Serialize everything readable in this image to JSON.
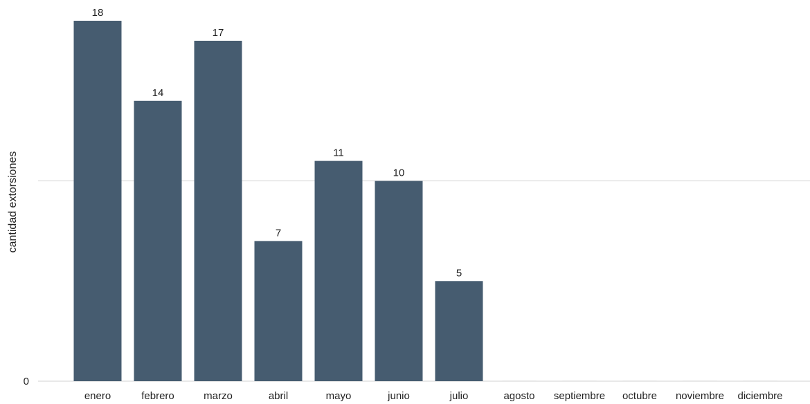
{
  "colors": {
    "bar": "#465c70",
    "gridline": "#d0d0d0",
    "baseline": "#d0d0d0",
    "text": "#222222"
  },
  "chart_data": {
    "type": "bar",
    "categories": [
      "enero",
      "febrero",
      "marzo",
      "abril",
      "mayo",
      "junio",
      "julio",
      "agosto",
      "septiembre",
      "octubre",
      "noviembre",
      "diciembre"
    ],
    "values": [
      18,
      14,
      17,
      7,
      11,
      10,
      5,
      0,
      0,
      0,
      0,
      0
    ],
    "data_labels": [
      "18",
      "14",
      "17",
      "7",
      "11",
      "10",
      "5",
      "",
      "",
      "",
      "",
      ""
    ],
    "ylabel": "cantidad extorsiones",
    "xlabel": "",
    "ylim": [
      0,
      20
    ],
    "y_ticks": [
      0,
      10
    ],
    "y_tick_labels": [
      "0",
      ""
    ],
    "grid": true
  }
}
